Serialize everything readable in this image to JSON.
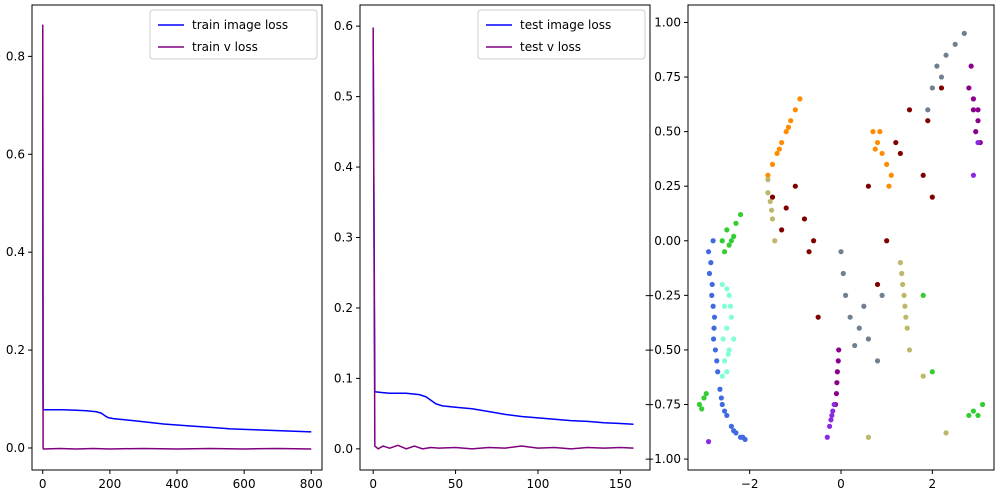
{
  "chart_data": [
    {
      "type": "line",
      "x_ticks": [
        0,
        200,
        400,
        600,
        800
      ],
      "y_ticks": [
        0.0,
        0.2,
        0.4,
        0.6,
        0.8
      ],
      "x_tick_labels": [
        "0",
        "200",
        "400",
        "600",
        "800"
      ],
      "y_tick_labels": [
        "0.0",
        "0.2",
        "0.4",
        "0.6",
        "0.8"
      ],
      "xlim": [
        -32,
        832
      ],
      "ylim": [
        -0.045,
        0.905
      ],
      "legend_position": "upper-right",
      "series": [
        {
          "name": "train image loss",
          "color": "#0000ff",
          "x": [
            0,
            1,
            2,
            5,
            10,
            30,
            60,
            100,
            130,
            160,
            175,
            185,
            195,
            210,
            240,
            280,
            320,
            360,
            400,
            440,
            480,
            520,
            560,
            600,
            640,
            680,
            720,
            760,
            800
          ],
          "y": [
            0.85,
            0.08,
            0.078,
            0.078,
            0.078,
            0.078,
            0.078,
            0.077,
            0.076,
            0.074,
            0.071,
            0.066,
            0.062,
            0.06,
            0.058,
            0.055,
            0.052,
            0.049,
            0.047,
            0.045,
            0.043,
            0.041,
            0.039,
            0.038,
            0.037,
            0.036,
            0.035,
            0.034,
            0.033
          ]
        },
        {
          "name": "train v loss",
          "color": "#800080",
          "x": [
            0,
            1,
            2,
            50,
            100,
            150,
            200,
            300,
            400,
            500,
            600,
            700,
            800
          ],
          "y": [
            0.865,
            0.0,
            -0.002,
            -0.001,
            -0.002,
            -0.001,
            -0.002,
            -0.001,
            -0.002,
            -0.001,
            -0.002,
            -0.001,
            -0.002
          ]
        }
      ]
    },
    {
      "type": "line",
      "x_ticks": [
        0,
        50,
        100,
        150
      ],
      "y_ticks": [
        0.0,
        0.1,
        0.2,
        0.3,
        0.4,
        0.5,
        0.6
      ],
      "x_tick_labels": [
        "0",
        "50",
        "100",
        "150"
      ],
      "y_tick_labels": [
        "0.0",
        "0.1",
        "0.2",
        "0.3",
        "0.4",
        "0.5",
        "0.6"
      ],
      "xlim": [
        -8,
        168
      ],
      "ylim": [
        -0.03,
        0.63
      ],
      "legend_position": "upper-right",
      "series": [
        {
          "name": "test image loss",
          "color": "#0000ff",
          "x": [
            0,
            1,
            5,
            10,
            20,
            28,
            32,
            35,
            38,
            42,
            50,
            60,
            70,
            80,
            90,
            100,
            110,
            120,
            130,
            140,
            150,
            158
          ],
          "y": [
            0.58,
            0.081,
            0.08,
            0.079,
            0.079,
            0.077,
            0.074,
            0.069,
            0.064,
            0.061,
            0.059,
            0.057,
            0.053,
            0.049,
            0.046,
            0.044,
            0.042,
            0.04,
            0.039,
            0.037,
            0.036,
            0.035
          ]
        },
        {
          "name": "test v loss",
          "color": "#800080",
          "x": [
            0,
            1,
            3,
            6,
            10,
            15,
            20,
            25,
            30,
            35,
            40,
            50,
            60,
            70,
            80,
            90,
            100,
            110,
            120,
            130,
            140,
            150,
            158
          ],
          "y": [
            0.598,
            0.004,
            0.0,
            0.004,
            0.001,
            0.005,
            0.0,
            0.004,
            0.0,
            0.002,
            0.001,
            0.002,
            0.0,
            0.002,
            0.001,
            0.004,
            0.001,
            0.002,
            0.0,
            0.002,
            0.001,
            0.002,
            0.001
          ]
        }
      ]
    },
    {
      "type": "scatter",
      "x_ticks": [
        -2,
        0,
        2
      ],
      "y_ticks": [
        -1.0,
        -0.75,
        -0.5,
        -0.25,
        0.0,
        0.25,
        0.5,
        0.75,
        1.0
      ],
      "x_tick_labels": [
        "−2",
        "0",
        "2"
      ],
      "y_tick_labels": [
        "−1.00",
        "−0.75",
        "−0.50",
        "−0.25",
        "0.00",
        "0.25",
        "0.50",
        "0.75",
        "1.00"
      ],
      "xlim": [
        -3.35,
        3.35
      ],
      "ylim": [
        -1.05,
        1.08
      ],
      "clusters": [
        {
          "color": "#4169e1",
          "points": [
            [
              -2.9,
              -0.05
            ],
            [
              -2.85,
              -0.1
            ],
            [
              -2.82,
              -0.2
            ],
            [
              -2.8,
              -0.3
            ],
            [
              -2.78,
              -0.4
            ],
            [
              -2.75,
              -0.5
            ],
            [
              -2.7,
              -0.6
            ],
            [
              -2.65,
              -0.68
            ],
            [
              -2.6,
              -0.75
            ],
            [
              -2.5,
              -0.8
            ],
            [
              -2.4,
              -0.85
            ],
            [
              -2.3,
              -0.88
            ],
            [
              -2.2,
              -0.9
            ],
            [
              -2.1,
              -0.91
            ],
            [
              -2.8,
              0.0
            ],
            [
              -2.88,
              -0.15
            ],
            [
              -2.77,
              -0.35
            ],
            [
              -2.72,
              -0.55
            ],
            [
              -2.55,
              -0.78
            ],
            [
              -2.35,
              -0.87
            ],
            [
              -2.15,
              -0.9
            ],
            [
              -2.83,
              -0.25
            ],
            [
              -2.79,
              -0.45
            ],
            [
              -2.62,
              -0.72
            ]
          ]
        },
        {
          "color": "#7fffd4",
          "points": [
            [
              -2.6,
              -0.2
            ],
            [
              -2.55,
              -0.3
            ],
            [
              -2.5,
              -0.4
            ],
            [
              -2.45,
              -0.5
            ],
            [
              -2.5,
              -0.6
            ],
            [
              -2.55,
              -0.55
            ],
            [
              -2.45,
              -0.25
            ],
            [
              -2.4,
              -0.35
            ],
            [
              -2.35,
              -0.45
            ],
            [
              -2.6,
              -0.62
            ],
            [
              -2.5,
              -0.22
            ],
            [
              -2.42,
              -0.3
            ],
            [
              -2.58,
              -0.45
            ],
            [
              -2.47,
              -0.52
            ]
          ]
        },
        {
          "color": "#32cd32",
          "points": [
            [
              -2.6,
              0.0
            ],
            [
              -2.5,
              0.05
            ],
            [
              -2.4,
              0.0
            ],
            [
              -2.3,
              0.08
            ],
            [
              -2.55,
              -0.05
            ],
            [
              -2.45,
              -0.02
            ],
            [
              -2.2,
              0.12
            ],
            [
              -2.35,
              0.02
            ],
            [
              -3.1,
              -0.75
            ],
            [
              -3.0,
              -0.72
            ],
            [
              -2.95,
              -0.7
            ],
            [
              -3.05,
              -0.77
            ],
            [
              3.0,
              -0.8
            ],
            [
              2.9,
              -0.78
            ],
            [
              2.8,
              -0.8
            ],
            [
              3.1,
              -0.75
            ],
            [
              1.8,
              -0.25
            ],
            [
              2.0,
              -0.6
            ]
          ]
        },
        {
          "color": "#ff8c00",
          "points": [
            [
              -1.6,
              0.3
            ],
            [
              -1.5,
              0.35
            ],
            [
              -1.4,
              0.4
            ],
            [
              -1.3,
              0.45
            ],
            [
              -1.2,
              0.5
            ],
            [
              -1.1,
              0.55
            ],
            [
              -1.0,
              0.6
            ],
            [
              -0.9,
              0.65
            ],
            [
              0.7,
              0.5
            ],
            [
              0.8,
              0.45
            ],
            [
              0.9,
              0.4
            ],
            [
              1.0,
              0.35
            ],
            [
              1.1,
              0.3
            ],
            [
              0.75,
              0.42
            ],
            [
              0.85,
              0.5
            ],
            [
              1.05,
              0.25
            ],
            [
              -1.35,
              0.42
            ],
            [
              -1.15,
              0.52
            ]
          ]
        },
        {
          "color": "#800000",
          "points": [
            [
              -1.5,
              0.2
            ],
            [
              -1.2,
              0.15
            ],
            [
              -0.8,
              0.1
            ],
            [
              -0.6,
              0.0
            ],
            [
              -1.0,
              0.25
            ],
            [
              -0.7,
              -0.05
            ],
            [
              -1.3,
              0.05
            ],
            [
              1.2,
              0.45
            ],
            [
              1.5,
              0.6
            ],
            [
              1.8,
              0.3
            ],
            [
              2.0,
              0.2
            ],
            [
              1.3,
              0.4
            ],
            [
              0.6,
              0.25
            ],
            [
              1.9,
              0.55
            ],
            [
              -0.5,
              -0.35
            ],
            [
              0.8,
              -0.2
            ],
            [
              1.0,
              0.0
            ],
            [
              2.2,
              0.7
            ]
          ]
        },
        {
          "color": "#bdb76b",
          "points": [
            [
              -1.6,
              0.28
            ],
            [
              -1.55,
              0.18
            ],
            [
              -1.5,
              0.1
            ],
            [
              -1.45,
              0.0
            ],
            [
              -1.6,
              0.22
            ],
            [
              -1.52,
              0.14
            ],
            [
              1.3,
              -0.1
            ],
            [
              1.35,
              -0.2
            ],
            [
              1.4,
              -0.3
            ],
            [
              1.45,
              -0.4
            ],
            [
              1.5,
              -0.5
            ],
            [
              1.38,
              -0.25
            ],
            [
              1.42,
              -0.35
            ],
            [
              1.33,
              -0.15
            ],
            [
              0.6,
              -0.9
            ],
            [
              1.8,
              -0.62
            ],
            [
              2.3,
              -0.88
            ]
          ]
        },
        {
          "color": "#708090",
          "points": [
            [
              0.0,
              -0.05
            ],
            [
              0.05,
              -0.15
            ],
            [
              0.1,
              -0.25
            ],
            [
              0.2,
              -0.35
            ],
            [
              0.4,
              -0.4
            ],
            [
              0.6,
              -0.45
            ],
            [
              0.8,
              -0.55
            ],
            [
              0.5,
              -0.3
            ],
            [
              1.9,
              0.6
            ],
            [
              2.0,
              0.7
            ],
            [
              2.1,
              0.8
            ],
            [
              2.3,
              0.85
            ],
            [
              2.5,
              0.9
            ],
            [
              2.7,
              0.95
            ],
            [
              2.2,
              0.75
            ],
            [
              0.9,
              -0.25
            ],
            [
              0.3,
              -0.48
            ]
          ]
        },
        {
          "color": "#8b008b",
          "points": [
            [
              -0.05,
              -0.5
            ],
            [
              -0.08,
              -0.6
            ],
            [
              -0.1,
              -0.7
            ],
            [
              -0.12,
              -0.75
            ],
            [
              2.8,
              0.7
            ],
            [
              2.9,
              0.6
            ],
            [
              2.95,
              0.5
            ],
            [
              3.0,
              0.55
            ],
            [
              3.05,
              0.45
            ],
            [
              2.85,
              0.8
            ],
            [
              2.9,
              0.65
            ],
            [
              3.0,
              0.6
            ],
            [
              -0.06,
              -0.55
            ],
            [
              -0.09,
              -0.65
            ]
          ]
        },
        {
          "color": "#8a2be2",
          "points": [
            [
              -0.2,
              -0.8
            ],
            [
              -0.25,
              -0.85
            ],
            [
              -0.15,
              -0.75
            ],
            [
              -0.22,
              -0.82
            ],
            [
              -0.3,
              -0.9
            ],
            [
              -0.18,
              -0.78
            ],
            [
              -2.9,
              -0.92
            ],
            [
              3.0,
              0.45
            ],
            [
              2.9,
              0.3
            ]
          ]
        }
      ]
    }
  ]
}
